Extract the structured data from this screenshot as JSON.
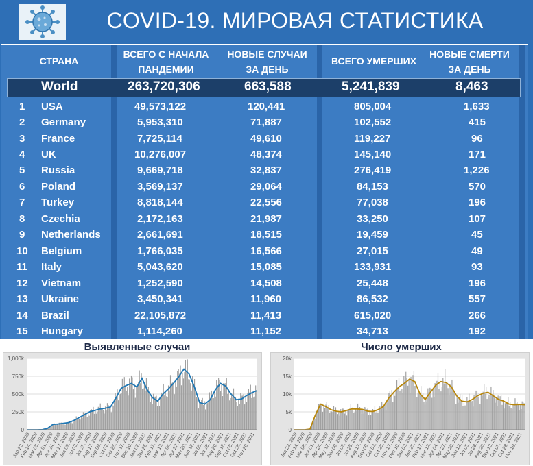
{
  "title": "COVID-19. МИРОВАЯ СТАТИСТИКА",
  "logo_icon": "coronavirus-icon",
  "columns": [
    "СТРАНА",
    "ВСЕГО С НАЧАЛА\nПАНДЕМИИ",
    "НОВЫЕ СЛУЧАИ\nЗА ДЕНЬ",
    "ВСЕГО УМЕРШИХ",
    "НОВЫЕ СМЕРТИ\nЗА ДЕНЬ"
  ],
  "world": {
    "name": "World",
    "total": "263,720,306",
    "new_cases": "663,588",
    "deaths": "5,241,839",
    "new_deaths": "8,463"
  },
  "rows": [
    {
      "rank": "1",
      "country": "USA",
      "total": "49,573,122",
      "new_cases": "120,441",
      "deaths": "805,004",
      "new_deaths": "1,633"
    },
    {
      "rank": "2",
      "country": "Germany",
      "total": "5,953,310",
      "new_cases": "71,887",
      "deaths": "102,552",
      "new_deaths": "415"
    },
    {
      "rank": "3",
      "country": "France",
      "total": "7,725,114",
      "new_cases": "49,610",
      "deaths": "119,227",
      "new_deaths": "96"
    },
    {
      "rank": "4",
      "country": "UK",
      "total": "10,276,007",
      "new_cases": "48,374",
      "deaths": "145,140",
      "new_deaths": "171"
    },
    {
      "rank": "5",
      "country": "Russia",
      "total": "9,669,718",
      "new_cases": "32,837",
      "deaths": "276,419",
      "new_deaths": "1,226"
    },
    {
      "rank": "6",
      "country": "Poland",
      "total": "3,569,137",
      "new_cases": "29,064",
      "deaths": "84,153",
      "new_deaths": "570"
    },
    {
      "rank": "7",
      "country": "Turkey",
      "total": "8,818,144",
      "new_cases": "22,556",
      "deaths": "77,038",
      "new_deaths": "196"
    },
    {
      "rank": "8",
      "country": "Czechia",
      "total": "2,172,163",
      "new_cases": "21,987",
      "deaths": "33,250",
      "new_deaths": "107"
    },
    {
      "rank": "9",
      "country": "Netherlands",
      "total": "2,661,691",
      "new_cases": "18,515",
      "deaths": "19,459",
      "new_deaths": "45"
    },
    {
      "rank": "10",
      "country": "Belgium",
      "total": "1,766,035",
      "new_cases": "16,566",
      "deaths": "27,015",
      "new_deaths": "49"
    },
    {
      "rank": "11",
      "country": "Italy",
      "total": "5,043,620",
      "new_cases": "15,085",
      "deaths": "133,931",
      "new_deaths": "93"
    },
    {
      "rank": "12",
      "country": "Vietnam",
      "total": "1,252,590",
      "new_cases": "14,508",
      "deaths": "25,448",
      "new_deaths": "196"
    },
    {
      "rank": "13",
      "country": "Ukraine",
      "total": "3,450,341",
      "new_cases": "11,960",
      "deaths": "86,532",
      "new_deaths": "557"
    },
    {
      "rank": "14",
      "country": "Brazil",
      "total": "22,105,872",
      "new_cases": "11,413",
      "deaths": "615,020",
      "new_deaths": "266"
    },
    {
      "rank": "15",
      "country": "Hungary",
      "total": "1,114,260",
      "new_cases": "11,152",
      "deaths": "34,713",
      "new_deaths": "192"
    }
  ],
  "chart_data": [
    {
      "type": "bar",
      "title": "Выявленные случаи",
      "ylim": [
        0,
        1000000
      ],
      "yticks": [
        "0",
        "250k",
        "500k",
        "750k",
        "1,000k"
      ],
      "ytick_values": [
        0,
        250000,
        500000,
        750000,
        1000000
      ],
      "xticks": [
        "Jan 22, 2020",
        "Feb 14, 2020",
        "Mar 08, 2020",
        "Apr 01, 2020",
        "Apr 24, 2020",
        "May 17, 2020",
        "Jun 09, 2020",
        "Jul 02, 2020",
        "Jul 25, 2020",
        "Aug 17, 2020",
        "Sep 09, 2020",
        "Oct 02, 2020",
        "Oct 25, 2020",
        "Nov 17, 2020",
        "Dec 10, 2020",
        "Jan 02, 2021",
        "Jan 25, 2021",
        "Feb 17, 2021",
        "Mar 12, 2021",
        "Apr 04, 2021",
        "Apr 27, 2021",
        "May 20, 2021",
        "Jun 12, 2021",
        "Jul 05, 2021",
        "Jul 28, 2021",
        "Aug 20, 2021",
        "Sep 12, 2021",
        "Oct 05, 2021",
        "Oct 28, 2021",
        "Nov 20, 2021"
      ],
      "moving_average": [
        0,
        0,
        0,
        2000,
        20000,
        75000,
        80000,
        90000,
        100000,
        130000,
        170000,
        210000,
        250000,
        270000,
        290000,
        300000,
        320000,
        440000,
        580000,
        620000,
        650000,
        600000,
        720000,
        560000,
        450000,
        400000,
        500000,
        570000,
        650000,
        740000,
        850000,
        780000,
        600000,
        380000,
        360000,
        420000,
        560000,
        650000,
        610000,
        500000,
        420000,
        430000,
        480000,
        520000,
        550000
      ],
      "line_color": "#1f77b4",
      "bar_color": "#a0a0a0"
    },
    {
      "type": "bar",
      "title": "Число умерших",
      "ylim": [
        0,
        20000
      ],
      "yticks": [
        "0",
        "5k",
        "10k",
        "15k",
        "20k"
      ],
      "ytick_values": [
        0,
        5000,
        10000,
        15000,
        20000
      ],
      "xticks": [
        "Jan 22, 2020",
        "Feb 14, 2020",
        "Mar 08, 2020",
        "Apr 01, 2020",
        "Apr 24, 2020",
        "May 17, 2020",
        "Jun 09, 2020",
        "Jul 02, 2020",
        "Jul 25, 2020",
        "Aug 17, 2020",
        "Sep 09, 2020",
        "Oct 02, 2020",
        "Oct 25, 2020",
        "Nov 17, 2020",
        "Dec 10, 2020",
        "Jan 02, 2021",
        "Jan 25, 2021",
        "Feb 17, 2021",
        "Mar 12, 2021",
        "Apr 04, 2021",
        "Apr 27, 2021",
        "May 20, 2021",
        "Jun 12, 2021",
        "Jul 05, 2021",
        "Jul 28, 2021",
        "Aug 20, 2021",
        "Sep 12, 2021",
        "Oct 05, 2021",
        "Oct 28, 2021",
        "Nov 19, 2021"
      ],
      "moving_average": [
        0,
        0,
        0,
        200,
        4000,
        7200,
        6500,
        5600,
        5200,
        5000,
        5400,
        5800,
        5800,
        5700,
        5200,
        5100,
        5600,
        6500,
        8800,
        10500,
        12000,
        13000,
        14200,
        13500,
        10000,
        8500,
        10500,
        12500,
        13500,
        13200,
        12000,
        9500,
        8000,
        7800,
        8500,
        9500,
        10200,
        10500,
        9500,
        8500,
        8000,
        7200,
        7000,
        7100,
        7000
      ],
      "line_color": "#b8860b",
      "bar_color": "#a0a0a0"
    }
  ]
}
